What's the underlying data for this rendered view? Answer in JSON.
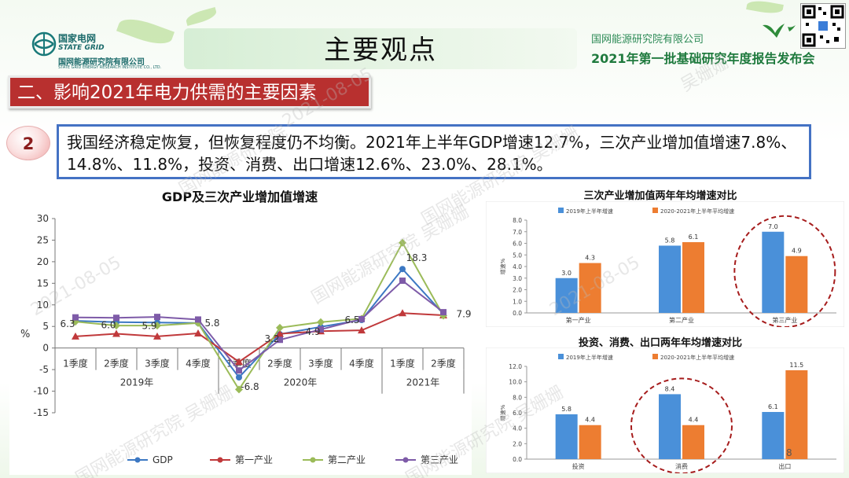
{
  "page": {
    "main_title": "主要观点",
    "logo_cn": "国家电网",
    "logo_en": "STATE GRID",
    "logo_sub": "国网能源研究院有限公司",
    "logo_sub_en": "STATE GRID ENERGY RESEARCH INSTITUTE CO., LTD.",
    "institute": "国网能源研究院有限公司",
    "event_title": "2021年第一批基础研究年度报告发布会",
    "section_title": "二、影响2021年电力供需的主要因素",
    "point_number": "2",
    "point_text": "我国经济稳定恢复，但恢复程度仍不均衡。2021年上半年GDP增速12.7%，三次产业增加值增速7.8%、14.8%、11.8%，投资、消费、出口增速12.6%、23.0%、28.1%。",
    "page_number": "8",
    "watermarks": [
      "国网能源研究院",
      "吴姗姗",
      "2021-08-05"
    ]
  },
  "chart_data": [
    {
      "type": "line",
      "title": "GDP及三次产业增加值增速",
      "ylabel": "%",
      "ylim": [
        -15,
        30
      ],
      "yticks": [
        -15,
        -10,
        -5,
        0,
        5,
        10,
        15,
        20,
        25,
        30
      ],
      "categories": [
        "1季度",
        "2季度",
        "3季度",
        "4季度",
        "1季度",
        "2季度",
        "3季度",
        "4季度",
        "1季度",
        "2季度"
      ],
      "groups": [
        {
          "label": "2019年",
          "span": [
            0,
            3
          ]
        },
        {
          "label": "2020年",
          "span": [
            4,
            7
          ]
        },
        {
          "label": "2021年",
          "span": [
            8,
            9
          ]
        }
      ],
      "series": [
        {
          "name": "GDP",
          "color": "#3c78c3",
          "marker": "circle",
          "values": [
            6.3,
            6.0,
            5.9,
            5.8,
            -6.8,
            3.2,
            4.9,
            6.5,
            18.3,
            7.9
          ]
        },
        {
          "name": "第一产业",
          "color": "#c0393b",
          "marker": "triangle",
          "values": [
            2.7,
            3.3,
            2.7,
            3.4,
            -3.2,
            3.3,
            3.9,
            4.1,
            8.1,
            7.6
          ]
        },
        {
          "name": "第二产业",
          "color": "#9bbb59",
          "marker": "diamond",
          "values": [
            6.1,
            5.2,
            5.2,
            5.8,
            -9.6,
            4.7,
            6.0,
            6.8,
            24.4,
            7.5
          ]
        },
        {
          "name": "第三产业",
          "color": "#7e5ba8",
          "marker": "square",
          "values": [
            7.1,
            7.0,
            7.2,
            6.6,
            -5.2,
            1.9,
            4.3,
            6.7,
            15.6,
            8.3
          ]
        }
      ],
      "data_labels": [
        {
          "series": 0,
          "index": 0,
          "text": "6.3"
        },
        {
          "series": 0,
          "index": 1,
          "text": "6.0"
        },
        {
          "series": 0,
          "index": 2,
          "text": "5.9"
        },
        {
          "series": 0,
          "index": 3,
          "text": "5.8"
        },
        {
          "series": 0,
          "index": 4,
          "text": "-6.8"
        },
        {
          "series": 0,
          "index": 5,
          "text": "3.2"
        },
        {
          "series": 0,
          "index": 6,
          "text": "4.9"
        },
        {
          "series": 0,
          "index": 7,
          "text": "6.5"
        },
        {
          "series": 0,
          "index": 8,
          "text": "18.3"
        },
        {
          "series": 0,
          "index": 9,
          "text": "7.9"
        }
      ],
      "legend": "bottom"
    },
    {
      "type": "bar",
      "title": "三次产业增加值两年年均增速对比",
      "ylabel": "增速%",
      "ylim": [
        0,
        8
      ],
      "yticks": [
        "0.0",
        "1.0",
        "2.0",
        "3.0",
        "4.0",
        "5.0",
        "6.0",
        "7.0",
        "8.0"
      ],
      "categories": [
        "第一产业",
        "第二产业",
        "第三产业"
      ],
      "series": [
        {
          "name": "2019年上半年增速",
          "color": "#4a90d9",
          "values": [
            3.0,
            5.8,
            7.0
          ],
          "labels": [
            "3.0",
            "5.8",
            "7.0"
          ]
        },
        {
          "name": "2020-2021年上半年平均增速",
          "color": "#ed7d31",
          "values": [
            4.3,
            6.1,
            4.9
          ],
          "labels": [
            "4.3",
            "6.1",
            "4.9"
          ]
        }
      ],
      "highlight_category": 2,
      "legend": "top"
    },
    {
      "type": "bar",
      "title": "投资、消费、出口两年年均增速对比",
      "ylabel": "增速%",
      "ylim": [
        0,
        12
      ],
      "yticks": [
        "0.0",
        "2.0",
        "4.0",
        "6.0",
        "8.0",
        "10.0",
        "12.0"
      ],
      "categories": [
        "投资",
        "消费",
        "出口"
      ],
      "series": [
        {
          "name": "2019年上半年增速",
          "color": "#4a90d9",
          "values": [
            5.8,
            8.4,
            6.1
          ],
          "labels": [
            "5.8",
            "8.4",
            "6.1"
          ]
        },
        {
          "name": "2020-2021年上半年平均增速",
          "color": "#ed7d31",
          "values": [
            4.4,
            4.4,
            11.5
          ],
          "labels": [
            "4.4",
            "4.4",
            "11.5"
          ]
        }
      ],
      "highlight_category": 1,
      "legend": "top"
    }
  ]
}
